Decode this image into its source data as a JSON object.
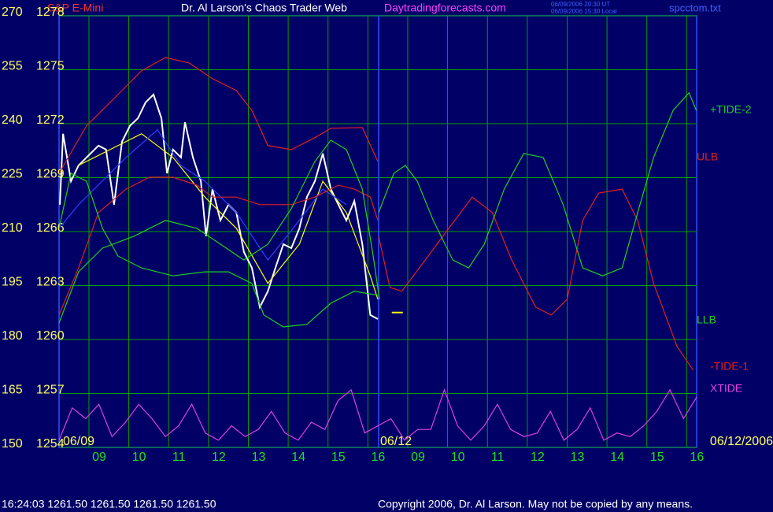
{
  "header": {
    "title_left": "S&P E-Mini",
    "title": "Dr. Al Larson's Chaos Trader Web",
    "site": "Daytradingforecasts.com",
    "time_ut": "06/09/2006 20:30 UT",
    "time_local": "06/09/2006 15:30 Local",
    "file": "spcctom.txt"
  },
  "chart_data": {
    "type": "line",
    "xlim": [
      -0.75,
      15.25
    ],
    "xticks": [
      {
        "value": 0,
        "label": "09"
      },
      {
        "value": 1,
        "label": "10"
      },
      {
        "value": 2,
        "label": "11"
      },
      {
        "value": 3,
        "label": "12"
      },
      {
        "value": 4,
        "label": "13"
      },
      {
        "value": 5,
        "label": "14"
      },
      {
        "value": 6,
        "label": "15"
      },
      {
        "value": 7,
        "label": "16"
      },
      {
        "value": 8,
        "label": "09"
      },
      {
        "value": 9,
        "label": "10"
      },
      {
        "value": 10,
        "label": "11"
      },
      {
        "value": 11,
        "label": "12"
      },
      {
        "value": 12,
        "label": "13"
      },
      {
        "value": 13,
        "label": "14"
      },
      {
        "value": 14,
        "label": "15"
      },
      {
        "value": 15,
        "label": "16"
      }
    ],
    "ylim": [
      150,
      270
    ],
    "yticks": [
      150,
      165,
      180,
      195,
      210,
      225,
      240,
      255,
      270
    ],
    "y2lim": [
      1254,
      1278
    ],
    "y2ticks": [
      1254,
      1257,
      1260,
      1263,
      1266,
      1269,
      1272,
      1275,
      1278
    ],
    "grid": true,
    "day_labels": [
      "06/09",
      "06/12",
      "06/12/2006"
    ],
    "divider_x": 7.27,
    "last_marker": {
      "x": 7.6,
      "value": 187.5
    },
    "series": [
      {
        "color": "#ffffff",
        "x": [
          -0.73,
          -0.65,
          -0.45,
          -0.26,
          -0.06,
          0.24,
          0.43,
          0.63,
          0.83,
          1.03,
          1.23,
          1.42,
          1.62,
          1.82,
          1.96,
          2.11,
          2.31,
          2.41,
          2.61,
          2.81,
          2.94,
          3.1,
          3.3,
          3.5,
          3.7,
          3.89,
          4.09,
          4.29,
          4.49,
          4.68,
          4.88,
          5.08,
          5.28,
          5.47,
          5.67,
          5.87,
          6.07,
          6.26,
          6.46,
          6.66,
          6.86,
          7.06,
          7.25
        ],
        "values": [
          217.5,
          237.2,
          224.0,
          228.4,
          230.6,
          233.9,
          232.8,
          217.5,
          235.0,
          239.4,
          241.5,
          245.9,
          248.1,
          241.5,
          226.2,
          232.8,
          230.6,
          240.4,
          230.6,
          224.0,
          208.7,
          221.8,
          213.1,
          217.5,
          215.3,
          204.3,
          199.9,
          189.0,
          193.4,
          199.9,
          206.5,
          205.4,
          210.9,
          219.6,
          224.0,
          231.7,
          221.8,
          217.5,
          213.1,
          218.5,
          206.5,
          186.8,
          185.7
        ]
      },
      {
        "color": "#ffff00",
        "x": [
          -0.26,
          0.53,
          1.32,
          2.11,
          2.91,
          3.7,
          4.49,
          5.28,
          5.87,
          6.46,
          7.06,
          7.25
        ],
        "values": [
          228.4,
          232.8,
          237.2,
          230.6,
          219.6,
          210.9,
          195.6,
          206.5,
          224.0,
          215.3,
          197.7,
          191.2
        ]
      },
      {
        "color": "#3040ff",
        "x": [
          -0.75,
          -0.26,
          0.93,
          1.72,
          2.31,
          2.91,
          3.7,
          4.49,
          5.28,
          5.87,
          6.46
        ],
        "values": [
          210.9,
          217.5,
          230.6,
          238.3,
          228.4,
          224.0,
          215.3,
          202.1,
          213.1,
          221.8,
          217.5
        ]
      },
      {
        "name": "ULB",
        "color": "#e02020",
        "x": [
          -0.75,
          -0.06,
          0.73,
          1.32,
          1.92,
          2.51,
          3.1,
          3.7,
          4.09,
          4.49,
          5.08,
          5.67,
          6.07,
          6.86,
          7.25
        ],
        "values": [
          226.2,
          239.4,
          248.1,
          254.7,
          258.4,
          256.9,
          252.5,
          249.2,
          243.7,
          233.9,
          232.8,
          236.1,
          238.7,
          238.9,
          229.5
        ]
      },
      {
        "color": "#e02020",
        "x": [
          -0.75,
          -0.26,
          0.24,
          0.93,
          1.52,
          2.11,
          2.71,
          3.1,
          3.7,
          4.29,
          5.08,
          5.67,
          6.26,
          6.66,
          7.06,
          7.25
        ],
        "values": [
          186.8,
          199.9,
          215.3,
          221.8,
          225.1,
          225.1,
          222.9,
          219.6,
          219.6,
          217.5,
          217.5,
          219.6,
          222.9,
          221.8,
          219.6,
          213.1
        ]
      },
      {
        "name": "LLB",
        "color": "#20d020",
        "x": [
          -0.75,
          -0.45,
          -0.06,
          0.34,
          0.73,
          1.32,
          2.11,
          2.91,
          3.5,
          4.09,
          4.39,
          4.88,
          5.47,
          6.07,
          6.66,
          7.25
        ],
        "values": [
          210.9,
          226.2,
          224.0,
          210.9,
          203.2,
          199.9,
          197.7,
          198.8,
          198.8,
          195.6,
          186.8,
          183.5,
          184.2,
          190.1,
          193.4,
          192.3
        ]
      },
      {
        "color": "#20d020",
        "x": [
          -0.75,
          -0.26,
          0.34,
          1.13,
          1.92,
          2.71,
          3.3,
          3.89,
          4.49,
          5.08,
          5.67,
          6.07,
          6.46,
          6.86,
          7.15,
          7.29
        ],
        "values": [
          184.6,
          198.8,
          205.4,
          208.7,
          213.1,
          210.9,
          206.5,
          202.1,
          206.5,
          216.4,
          229.5,
          235.4,
          232.8,
          221.8,
          202.1,
          191.2
        ]
      },
      {
        "name": "-TIDE-1",
        "color": "#e02020",
        "x": [
          7.27,
          7.55,
          7.85,
          8.44,
          9.03,
          9.62,
          10.12,
          10.61,
          11.21,
          11.6,
          12.0,
          12.39,
          12.79,
          13.38,
          13.77,
          14.17,
          14.76,
          15.16
        ],
        "values": [
          208.7,
          194.5,
          193.4,
          202.1,
          210.9,
          219.6,
          215.3,
          202.1,
          189.0,
          186.8,
          191.2,
          213.1,
          220.7,
          221.8,
          213.1,
          195.6,
          178.0,
          171.5
        ]
      },
      {
        "name": "+TIDE-2",
        "color": "#20d020",
        "x": [
          7.27,
          7.65,
          7.94,
          8.24,
          8.64,
          9.13,
          9.53,
          9.92,
          10.42,
          10.91,
          11.4,
          11.9,
          12.39,
          12.89,
          13.38,
          13.77,
          14.17,
          14.66,
          15.06,
          15.24
        ],
        "values": [
          215.3,
          226.2,
          228.4,
          224.0,
          213.1,
          202.1,
          199.9,
          206.5,
          221.8,
          231.7,
          230.6,
          217.5,
          199.9,
          197.7,
          199.9,
          215.3,
          230.6,
          243.7,
          248.6,
          243.7
        ]
      },
      {
        "name": "XTIDE",
        "color": "#e040e0",
        "x": [
          -0.75,
          -0.42,
          -0.08,
          0.25,
          0.58,
          0.92,
          1.25,
          1.58,
          1.92,
          2.25,
          2.58,
          2.92,
          3.25,
          3.58,
          3.92,
          4.25,
          4.58,
          4.92,
          5.25,
          5.58,
          5.92,
          6.25,
          6.58,
          6.92,
          7.25,
          7.58,
          7.92,
          8.25,
          8.58,
          8.92,
          9.25,
          9.58,
          9.92,
          10.25,
          10.58,
          10.92,
          11.25,
          11.58,
          11.92,
          12.25,
          12.58,
          12.92,
          13.25,
          13.58,
          13.92,
          14.25,
          14.58,
          14.92,
          15.25
        ],
        "values": [
          152,
          161,
          158,
          162,
          153,
          157,
          162,
          158,
          153,
          156,
          162,
          154,
          152,
          156,
          153,
          155,
          160,
          154,
          152,
          157,
          155,
          163,
          166,
          154,
          156,
          158,
          152,
          155,
          155,
          166,
          156,
          152,
          156,
          162,
          155,
          153,
          154,
          160,
          152,
          155,
          161,
          152,
          154,
          153,
          156,
          160,
          166,
          158,
          164
        ]
      }
    ]
  },
  "footer": {
    "quote": "16:24:03  1261.50 1261.50 1261.50 1261.50",
    "copyright": "Copyright 2006, Dr. Al Larson. May not be copied by any means."
  }
}
